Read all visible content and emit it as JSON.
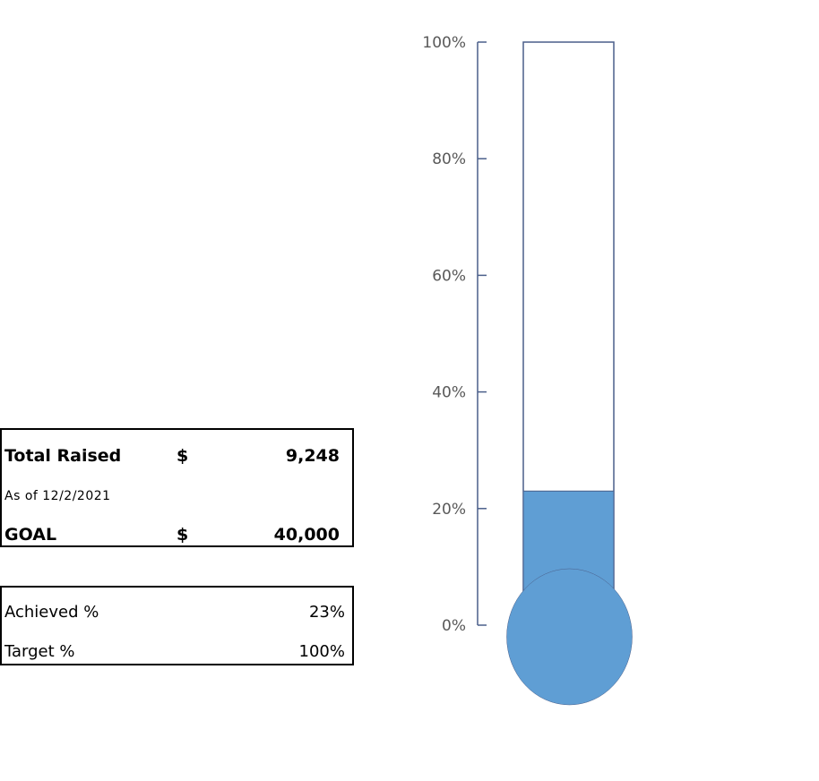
{
  "summary": {
    "total_raised_label": "Total Raised",
    "total_raised_currency": "$",
    "total_raised_value": "9,248",
    "as_of": "As of 12/2/2021",
    "goal_label": "GOAL",
    "goal_currency": "$",
    "goal_value": "40,000"
  },
  "percent_table": {
    "achieved_label": "Achieved %",
    "achieved_value": "23%",
    "target_label": "Target %",
    "target_value": "100%"
  },
  "chart_data": {
    "type": "bar",
    "categories": [
      ""
    ],
    "values": [
      23
    ],
    "ylim": [
      0,
      100
    ],
    "ytick_labels": [
      "0%",
      "20%",
      "40%",
      "60%",
      "80%",
      "100%"
    ],
    "yticks": [
      0,
      20,
      40,
      60,
      80,
      100
    ],
    "grid": false,
    "style": "thermometer",
    "fill_color": "#5f9ed4",
    "outline_color": "#4a5f8a"
  }
}
